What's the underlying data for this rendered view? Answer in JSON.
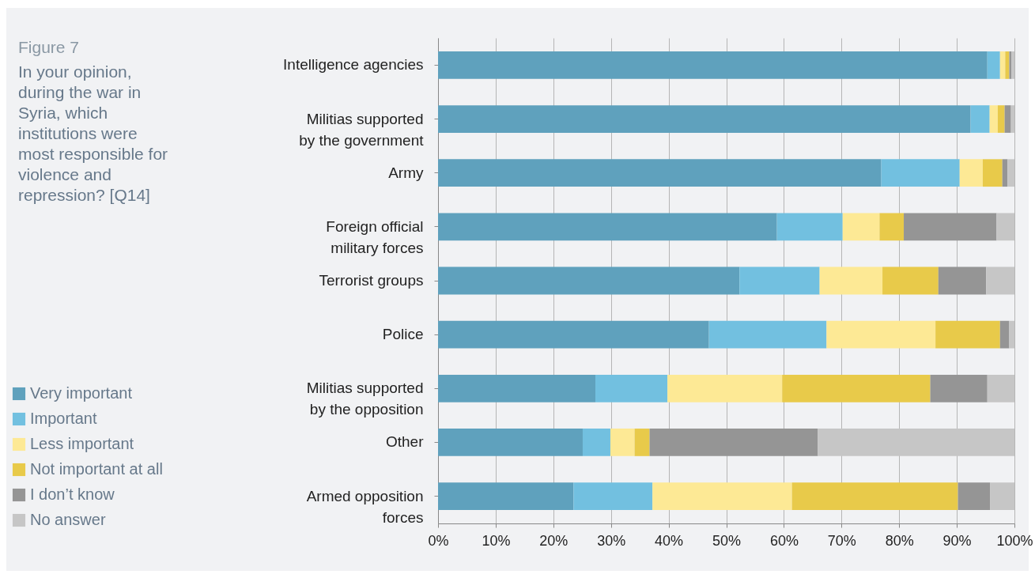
{
  "chart_data": {
    "type": "bar",
    "orientation": "horizontal",
    "stacked": true,
    "title": "Figure 7",
    "subtitle": "In your opinion, during the war in Syria, which institutions were most responsible for violence and repression? [Q14]",
    "categories": [
      "Intelligence agencies",
      "Militias supported by the government",
      "Army",
      "Foreign official military forces",
      "Terrorist groups",
      "Police",
      "Militias supported by the opposition",
      "Other",
      "Armed opposition forces"
    ],
    "series": [
      {
        "name": "Very important",
        "color": "#5fa1bd",
        "values": [
          95.3,
          92.4,
          76.9,
          58.8,
          52.3,
          47.0,
          27.3,
          25.1,
          23.5
        ]
      },
      {
        "name": "Important",
        "color": "#72c0e0",
        "values": [
          2.2,
          3.3,
          13.6,
          11.4,
          13.9,
          20.4,
          12.5,
          4.8,
          13.7
        ]
      },
      {
        "name": "Less important",
        "color": "#fde995",
        "values": [
          0.9,
          1.4,
          4.0,
          6.4,
          10.9,
          18.9,
          19.9,
          4.2,
          24.2
        ]
      },
      {
        "name": "Not important at all",
        "color": "#e8ca4a",
        "values": [
          0.7,
          1.2,
          3.4,
          4.2,
          9.7,
          11.2,
          25.7,
          2.6,
          28.8
        ]
      },
      {
        "name": "I don’t know",
        "color": "#959595",
        "values": [
          0.4,
          1.1,
          0.9,
          16.1,
          8.3,
          1.6,
          9.9,
          29.2,
          5.6
        ]
      },
      {
        "name": "No answer",
        "color": "#c6c6c6",
        "values": [
          0.5,
          0.6,
          1.2,
          3.1,
          4.9,
          0.9,
          4.7,
          34.1,
          4.2
        ]
      }
    ],
    "xlim": [
      0,
      100
    ],
    "xticks": [
      {
        "value": 0,
        "label": "0%"
      },
      {
        "value": 10,
        "label": "10%"
      },
      {
        "value": 20,
        "label": "20%"
      },
      {
        "value": 30,
        "label": "30%"
      },
      {
        "value": 40,
        "label": "40%"
      },
      {
        "value": 50,
        "label": "50%"
      },
      {
        "value": 60,
        "label": "60%"
      },
      {
        "value": 70,
        "label": "70%"
      },
      {
        "value": 80,
        "label": "80%"
      },
      {
        "value": 90,
        "label": "90%"
      },
      {
        "value": 100,
        "label": "100%"
      }
    ],
    "grid": "x",
    "legend": "bottom left"
  }
}
